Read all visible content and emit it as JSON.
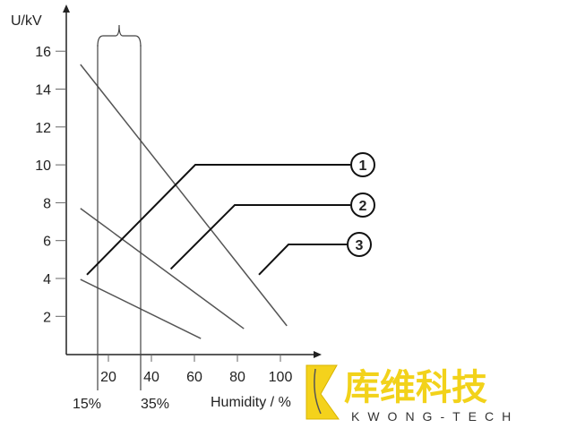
{
  "chart_data": {
    "type": "line",
    "title": "",
    "xlabel": "Humidity / %",
    "ylabel": "U/kV",
    "xlim": [
      0,
      115
    ],
    "ylim": [
      0,
      18
    ],
    "x_ticks": [
      "20",
      "40",
      "60",
      "80",
      "100"
    ],
    "y_ticks": [
      "2",
      "4",
      "6",
      "8",
      "10",
      "12",
      "14",
      "16"
    ],
    "grid": false,
    "series": [
      {
        "x": [
          7,
          103
        ],
        "y": [
          15.3,
          1.5
        ]
      },
      {
        "x": [
          7,
          83
        ],
        "y": [
          7.7,
          1.35
        ]
      },
      {
        "x": [
          7,
          63
        ],
        "y": [
          3.95,
          0.83
        ]
      }
    ],
    "range_markers": {
      "x": [
        15,
        35
      ],
      "labels": [
        "15%",
        "35%"
      ]
    },
    "callouts": [
      {
        "label": "1",
        "points_to": [
          10,
          4.2
        ]
      },
      {
        "label": "2",
        "points_to": [
          49,
          4.5
        ]
      },
      {
        "label": "3",
        "points_to": [
          90,
          4.2
        ]
      }
    ],
    "line_color": "#555555"
  },
  "logo": {
    "text_cn": "库维科技",
    "text_en": "KWONG-TECH",
    "color": "#f2d21a"
  }
}
